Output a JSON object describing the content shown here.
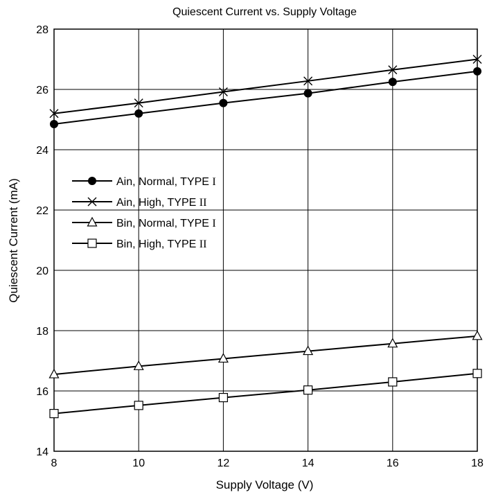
{
  "chart_data": {
    "type": "line",
    "title": "Quiescent Current vs. Supply Voltage",
    "xlabel": "Supply Voltage  (V)",
    "ylabel": "Quiescent Current  (mA)",
    "xlim": [
      8,
      18
    ],
    "ylim": [
      14,
      28
    ],
    "xticks": [
      8,
      10,
      12,
      14,
      16,
      18
    ],
    "yticks": [
      14,
      16,
      18,
      20,
      22,
      24,
      26,
      28
    ],
    "grid": true,
    "legend_position": "center-left",
    "x": [
      8,
      10,
      12,
      14,
      16,
      18
    ],
    "series": [
      {
        "name": "Ain, Normal, TYPE",
        "type_label": "I",
        "marker": "filled-circle",
        "values": [
          24.85,
          25.2,
          25.55,
          25.87,
          26.25,
          26.6
        ]
      },
      {
        "name": "Ain, High, TYPE",
        "type_label": "II",
        "marker": "cross",
        "values": [
          25.2,
          25.55,
          25.92,
          26.28,
          26.65,
          27.0
        ]
      },
      {
        "name": "Bin, Normal, TYPE",
        "type_label": "I",
        "marker": "open-triangle",
        "values": [
          16.55,
          16.82,
          17.07,
          17.32,
          17.57,
          17.82
        ]
      },
      {
        "name": "Bin, High, TYPE",
        "type_label": "II",
        "marker": "open-square",
        "values": [
          15.25,
          15.52,
          15.78,
          16.03,
          16.3,
          16.58
        ]
      }
    ]
  }
}
